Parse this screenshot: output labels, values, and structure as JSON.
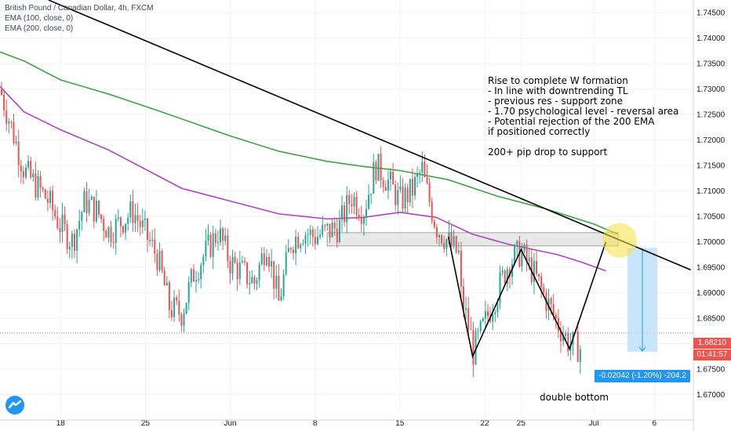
{
  "legend": {
    "symbol": "British Pound / Canadian Dollar, 4h, FXCM",
    "ema100": "EMA (100, close, 0)",
    "ema200": "EMA (200, close, 0)"
  },
  "annotation": {
    "lines": [
      "Rise to complete W formation",
      "- In line with downtrending TL",
      "- previous res - support zone",
      "- 1.70 psychological level - reversal area",
      "- Potential rejection of the 200 EMA",
      "if positioned correctly"
    ],
    "extra": "200+ pip drop to support"
  },
  "pattern_label": "double bottom",
  "measure_label": "-0.02042 (-1.20%) -204.2",
  "current_price": "1.68210",
  "countdown": "01:41:57",
  "colors": {
    "bull": "#26a69a",
    "bear": "#ef5350",
    "ema100": "#ab47bc",
    "ema200": "#43a047",
    "trendline": "#000000",
    "zone_fill": "#e0e0e0",
    "measure": "#2196f3",
    "ellipse": "#f5e042"
  },
  "chart_data": {
    "type": "candlestick",
    "title": "British Pound / Canadian Dollar, 4h, FXCM",
    "ylim": [
      1.665,
      1.7475
    ],
    "y_ticks": [
      "1.74500",
      "1.74000",
      "1.73500",
      "1.73000",
      "1.72500",
      "1.72000",
      "1.71500",
      "1.71000",
      "1.70500",
      "1.70000",
      "1.69500",
      "1.69000",
      "1.68500",
      "1.68000",
      "1.67500",
      "1.67000"
    ],
    "x_ticks": [
      "18",
      "25",
      "Jun",
      "8",
      "15",
      "22",
      "25",
      "Jul",
      "6"
    ],
    "price_path": [
      {
        "t": "May 13",
        "y": 1.73
      },
      {
        "t": "May 14",
        "y": 1.722
      },
      {
        "t": "May 15",
        "y": 1.714
      },
      {
        "t": "May 17",
        "y": 1.708
      },
      {
        "t": "May 18",
        "y": 1.703
      },
      {
        "t": "May 19",
        "y": 1.7
      },
      {
        "t": "May 20",
        "y": 1.708
      },
      {
        "t": "May 21",
        "y": 1.706
      },
      {
        "t": "May 22",
        "y": 1.702
      },
      {
        "t": "May 24",
        "y": 1.706
      },
      {
        "t": "May 26",
        "y": 1.697
      },
      {
        "t": "May 27",
        "y": 1.687
      },
      {
        "t": "May 28",
        "y": 1.686
      },
      {
        "t": "May 29",
        "y": 1.694
      },
      {
        "t": "May 31",
        "y": 1.702
      },
      {
        "t": "Jun 1",
        "y": 1.696
      },
      {
        "t": "Jun 2",
        "y": 1.694
      },
      {
        "t": "Jun 3",
        "y": 1.692
      },
      {
        "t": "Jun 4",
        "y": 1.7
      },
      {
        "t": "Jun 5",
        "y": 1.688
      },
      {
        "t": "Jun 6",
        "y": 1.7
      },
      {
        "t": "Jun 7",
        "y": 1.702
      },
      {
        "t": "Jun 8",
        "y": 1.701
      },
      {
        "t": "Jun 9",
        "y": 1.702
      },
      {
        "t": "Jun 10",
        "y": 1.703
      },
      {
        "t": "Jun 11",
        "y": 1.709
      },
      {
        "t": "Jun 12",
        "y": 1.706
      },
      {
        "t": "Jun 13",
        "y": 1.715
      },
      {
        "t": "Jun 14",
        "y": 1.712
      },
      {
        "t": "Jun 15",
        "y": 1.708
      },
      {
        "t": "Jun 16",
        "y": 1.71
      },
      {
        "t": "Jun 17",
        "y": 1.715
      },
      {
        "t": "Jun 17",
        "y": 1.712
      },
      {
        "t": "Jun 18",
        "y": 1.703
      },
      {
        "t": "Jun 19",
        "y": 1.7
      },
      {
        "t": "Jun 20",
        "y": 1.697
      },
      {
        "t": "Jun 20",
        "y": 1.69
      },
      {
        "t": "Jun 21",
        "y": 1.68
      },
      {
        "t": "Jun 21",
        "y": 1.678
      },
      {
        "t": "Jun 22",
        "y": 1.684
      },
      {
        "t": "Jun 23",
        "y": 1.69
      },
      {
        "t": "Jun 24",
        "y": 1.696
      },
      {
        "t": "Jun 25",
        "y": 1.698
      },
      {
        "t": "Jun 26",
        "y": 1.694
      },
      {
        "t": "Jun 27",
        "y": 1.689
      },
      {
        "t": "Jun 28",
        "y": 1.684
      },
      {
        "t": "Jun 29",
        "y": 1.68
      },
      {
        "t": "Jun 30",
        "y": 1.679
      },
      {
        "t": "Jun 30",
        "y": 1.6821
      }
    ],
    "ema100": [
      {
        "t": "May 13",
        "y": 1.7305
      },
      {
        "t": "May 15",
        "y": 1.7255
      },
      {
        "t": "May 18",
        "y": 1.722
      },
      {
        "t": "May 22",
        "y": 1.718
      },
      {
        "t": "May 26",
        "y": 1.713
      },
      {
        "t": "May 28",
        "y": 1.7105
      },
      {
        "t": "Jun 1",
        "y": 1.708
      },
      {
        "t": "Jun 5",
        "y": 1.7055
      },
      {
        "t": "Jun 9",
        "y": 1.7045
      },
      {
        "t": "Jun 12",
        "y": 1.7048
      },
      {
        "t": "Jun 15",
        "y": 1.7058
      },
      {
        "t": "Jun 18",
        "y": 1.7048
      },
      {
        "t": "Jun 21",
        "y": 1.7015
      },
      {
        "t": "Jun 24",
        "y": 1.6995
      },
      {
        "t": "Jun 26",
        "y": 1.6985
      },
      {
        "t": "Jun 28",
        "y": 1.6975
      },
      {
        "t": "Jun 30",
        "y": 1.696
      },
      {
        "t": "Jul 2",
        "y": 1.6943
      }
    ],
    "ema200": [
      {
        "t": "May 13",
        "y": 1.7373
      },
      {
        "t": "May 15",
        "y": 1.7355
      },
      {
        "t": "May 18",
        "y": 1.7318
      },
      {
        "t": "May 22",
        "y": 1.729
      },
      {
        "t": "May 26",
        "y": 1.7258
      },
      {
        "t": "Jun 1",
        "y": 1.7208
      },
      {
        "t": "Jun 5",
        "y": 1.7178
      },
      {
        "t": "Jun 9",
        "y": 1.7158
      },
      {
        "t": "Jun 12",
        "y": 1.7148
      },
      {
        "t": "Jun 15",
        "y": 1.714
      },
      {
        "t": "Jun 19",
        "y": 1.7122
      },
      {
        "t": "Jun 23",
        "y": 1.709
      },
      {
        "t": "Jun 27",
        "y": 1.7065
      },
      {
        "t": "Jul 1",
        "y": 1.7035
      },
      {
        "t": "Jul 3",
        "y": 1.7015
      }
    ],
    "trendline": [
      {
        "t": "May 17",
        "y": 1.7475
      },
      {
        "t": "Jul 9",
        "y": 1.6945
      }
    ],
    "support_zone": {
      "y_top": 1.7018,
      "y_bottom": 1.6992,
      "from": "Jun 9",
      "to": "Jul 3"
    },
    "w_pattern_drawing": [
      {
        "t": "Jun 19",
        "y": 1.701
      },
      {
        "t": "Jun 21",
        "y": 1.6775
      },
      {
        "t": "Jun 25",
        "y": 1.6985
      },
      {
        "t": "Jun 29",
        "y": 1.679
      },
      {
        "t": "Jul 2",
        "y": 1.7
      }
    ],
    "measure": {
      "from": 1.6988,
      "to": 1.6784,
      "change": "-0.02042 (-1.20%) -204.2"
    },
    "current_price": 1.6821
  }
}
